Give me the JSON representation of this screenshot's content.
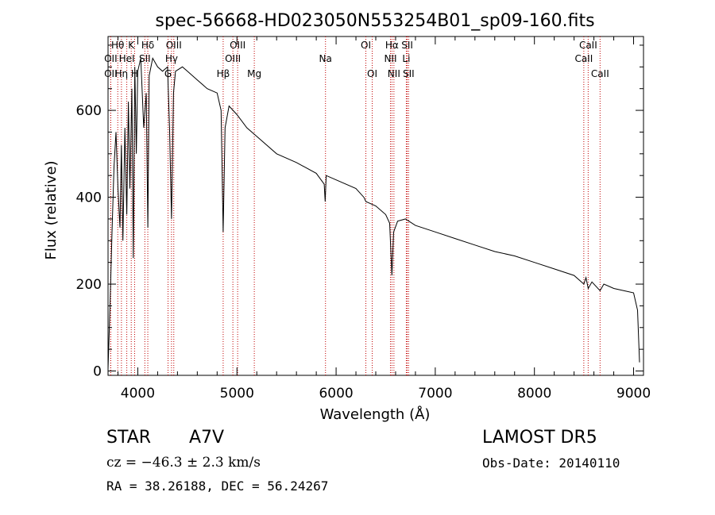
{
  "chart_data": {
    "type": "line",
    "title": "spec-56668-HD023050N553254B01_sp09-160.fits",
    "xlabel": "Wavelength (Å)",
    "ylabel": "Flux (relative)",
    "xlim": [
      3700,
      9100
    ],
    "ylim": [
      -10,
      770
    ],
    "xticks": [
      4000,
      5000,
      6000,
      7000,
      8000,
      9000
    ],
    "yticks": [
      0,
      200,
      400,
      600
    ],
    "grid": false,
    "line_color": "#000000",
    "marker_color": "#c00000",
    "x": [
      3700,
      3720,
      3740,
      3760,
      3780,
      3800,
      3820,
      3835,
      3850,
      3870,
      3889,
      3905,
      3920,
      3940,
      3955,
      3970,
      3985,
      4000,
      4030,
      4060,
      4085,
      4101,
      4115,
      4150,
      4200,
      4250,
      4300,
      4320,
      4340,
      4360,
      4380,
      4450,
      4500,
      4600,
      4700,
      4800,
      4840,
      4861,
      4880,
      4920,
      5000,
      5100,
      5200,
      5400,
      5600,
      5800,
      5880,
      5890,
      5900,
      6000,
      6200,
      6280,
      6300,
      6400,
      6500,
      6540,
      6563,
      6580,
      6620,
      6700,
      6800,
      7000,
      7200,
      7400,
      7600,
      7800,
      8000,
      8200,
      8400,
      8498,
      8520,
      8542,
      8580,
      8662,
      8700,
      8800,
      8900,
      9000,
      9040,
      9060
    ],
    "y": [
      5,
      150,
      320,
      470,
      550,
      420,
      330,
      520,
      300,
      560,
      360,
      620,
      420,
      650,
      260,
      700,
      500,
      690,
      720,
      560,
      640,
      330,
      680,
      720,
      700,
      690,
      700,
      560,
      350,
      640,
      690,
      700,
      690,
      670,
      650,
      640,
      600,
      320,
      560,
      610,
      590,
      560,
      540,
      500,
      480,
      455,
      430,
      390,
      450,
      440,
      420,
      400,
      390,
      380,
      360,
      340,
      220,
      320,
      345,
      350,
      335,
      320,
      305,
      290,
      275,
      265,
      250,
      235,
      220,
      200,
      215,
      190,
      205,
      185,
      200,
      190,
      185,
      180,
      140,
      20
    ],
    "lines": [
      {
        "label": "Hθ",
        "x": 3798,
        "row": 1
      },
      {
        "label": "OII",
        "x": 3727,
        "row": 2
      },
      {
        "label": "OII",
        "x": 3727,
        "row": 3
      },
      {
        "label": "Hη",
        "x": 3835,
        "row": 3
      },
      {
        "label": "K",
        "x": 3934,
        "row": 1
      },
      {
        "label": "HeI",
        "x": 3889,
        "row": 2
      },
      {
        "label": "H",
        "x": 3968,
        "row": 3
      },
      {
        "label": "Hδ",
        "x": 4101,
        "row": 1
      },
      {
        "label": "SII",
        "x": 4071,
        "row": 2
      },
      {
        "label": "OIII",
        "x": 4363,
        "row": 1
      },
      {
        "label": "Hγ",
        "x": 4340,
        "row": 2
      },
      {
        "label": "G",
        "x": 4305,
        "row": 3
      },
      {
        "label": "OIII",
        "x": 5007,
        "row": 1
      },
      {
        "label": "OIII",
        "x": 4959,
        "row": 2
      },
      {
        "label": "Hβ",
        "x": 4861,
        "row": 3
      },
      {
        "label": "Mg",
        "x": 5175,
        "row": 3
      },
      {
        "label": "Na",
        "x": 5893,
        "row": 2
      },
      {
        "label": "OI",
        "x": 6300,
        "row": 1
      },
      {
        "label": "OI",
        "x": 6364,
        "row": 3
      },
      {
        "label": "Hα",
        "x": 6563,
        "row": 1
      },
      {
        "label": "NII",
        "x": 6548,
        "row": 2
      },
      {
        "label": "NII",
        "x": 6583,
        "row": 3
      },
      {
        "label": "SII",
        "x": 6717,
        "row": 1
      },
      {
        "label": "Li",
        "x": 6708,
        "row": 2
      },
      {
        "label": "SII",
        "x": 6731,
        "row": 3
      },
      {
        "label": "CaII",
        "x": 8542,
        "row": 1
      },
      {
        "label": "CaII",
        "x": 8498,
        "row": 2
      },
      {
        "label": "CaII",
        "x": 8662,
        "row": 3
      }
    ]
  },
  "footer": {
    "object_type": "STAR",
    "spectral_class": "A7V",
    "survey": "LAMOST DR5",
    "cz": "cz = −46.3 ± 2.3 km/s",
    "obs_date": "Obs-Date: 20140110",
    "coords": "RA =  38.26188, DEC =  56.24267"
  }
}
